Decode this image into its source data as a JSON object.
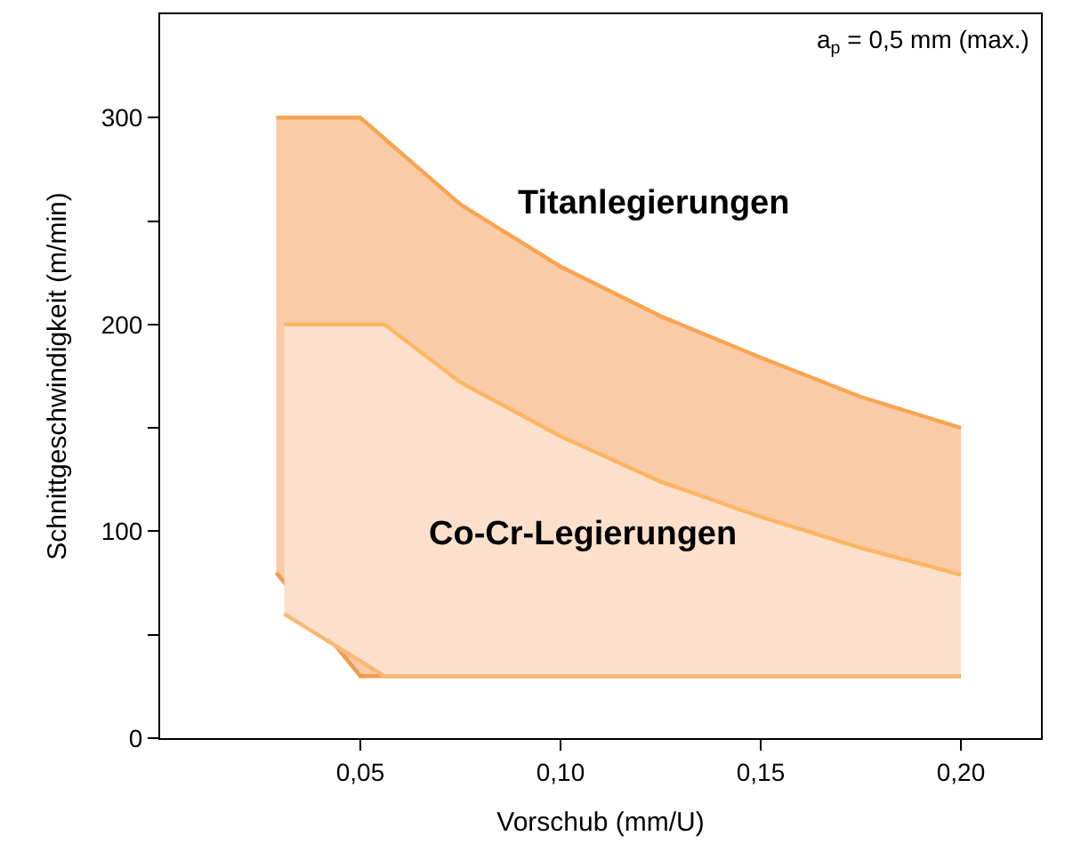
{
  "chart_data": {
    "type": "area",
    "xlabel": "Vorschub (mm/U)",
    "ylabel": "Schnittgeschwindigkeit (m/min)",
    "annotations": [
      "a$_{p}$ = 0,5 mm (max.)"
    ],
    "xlim": [
      0,
      0.22
    ],
    "xticks": [
      {
        "value": 0.05,
        "label": "0,05"
      },
      {
        "value": 0.1,
        "label": "0,10"
      },
      {
        "value": 0.15,
        "label": "0,15"
      },
      {
        "value": 0.2,
        "label": "0,20"
      }
    ],
    "ylim": [
      0,
      350
    ],
    "yticks": [
      0,
      {
        "value": 50,
        "label": null
      },
      100,
      {
        "value": 150,
        "label": null
      },
      200,
      {
        "value": 250,
        "label": null
      },
      300
    ],
    "legend": false,
    "series": [
      {
        "type": "line",
        "color": "#f39a4e",
        "x": [
          0.029,
          0.05,
          0.075,
          0.1,
          0.125,
          0.15,
          0.175,
          0.2
        ],
        "values": [
          80,
          30,
          30,
          30,
          30,
          30,
          30,
          30
        ]
      },
      {
        "name": "Titanlegierungen",
        "color": "#f9cba6",
        "x": [
          0.029,
          0.05,
          0.075,
          0.1,
          0.125,
          0.15,
          0.175,
          0.2
        ],
        "values": [
          300,
          300,
          258,
          228,
          204,
          184,
          165,
          150
        ]
      },
      {
        "type": "line",
        "color": "#f8b878",
        "x": [
          0.031,
          0.056,
          0.075,
          0.1,
          0.125,
          0.15,
          0.175,
          0.2
        ],
        "values": [
          60,
          30,
          30,
          30,
          30,
          30,
          30,
          30
        ]
      },
      {
        "name": "Co-Cr-Legierungen",
        "color": "#fde0cc",
        "x": [
          0.031,
          0.056,
          0.075,
          0.1,
          0.125,
          0.15,
          0.175,
          0.2
        ],
        "values": [
          200,
          200,
          172,
          146,
          124,
          107,
          92,
          79
        ]
      }
    ]
  }
}
